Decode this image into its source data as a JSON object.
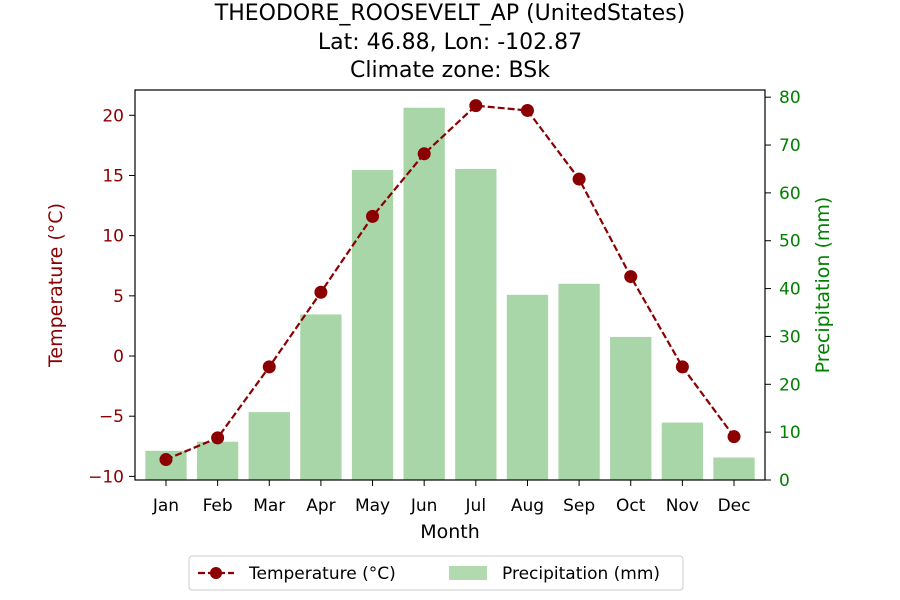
{
  "chart_data": {
    "type": "bar+line",
    "title_lines": [
      "THEODORE_ROOSEVELT_AP (UnitedStates)",
      "Lat: 46.88, Lon: -102.87",
      "Climate zone: BSk"
    ],
    "xlabel": "Month",
    "ylabel_left": "Temperature (°C)",
    "ylabel_right": "Precipitation (mm)",
    "categories": [
      "Jan",
      "Feb",
      "Mar",
      "Apr",
      "May",
      "Jun",
      "Jul",
      "Aug",
      "Sep",
      "Oct",
      "Nov",
      "Dec"
    ],
    "ylim_left": [
      -10.3,
      22.1
    ],
    "ylim_right": [
      0,
      81.5
    ],
    "yticks_left": [
      -10,
      -5,
      0,
      5,
      10,
      15,
      20
    ],
    "yticks_right": [
      0,
      10,
      20,
      30,
      40,
      50,
      60,
      70,
      80
    ],
    "series": [
      {
        "name": "Temperature (°C)",
        "axis": "left",
        "kind": "line",
        "values": [
          -8.6,
          -6.8,
          -0.9,
          5.3,
          11.6,
          16.8,
          20.8,
          20.4,
          14.7,
          6.6,
          -0.9,
          -6.7
        ]
      },
      {
        "name": "Precipitation (mm)",
        "axis": "right",
        "kind": "bar",
        "values": [
          6.1,
          8.0,
          14.2,
          34.6,
          64.8,
          77.8,
          65.0,
          38.7,
          41.0,
          29.9,
          12.0,
          4.7
        ]
      }
    ],
    "legend_position": "bottom-center",
    "colors": {
      "temperature": "#8b0000",
      "precipitation": "#a9d6a9",
      "right_axis": "#008000",
      "left_axis": "#8b0000"
    },
    "grid": false
  }
}
